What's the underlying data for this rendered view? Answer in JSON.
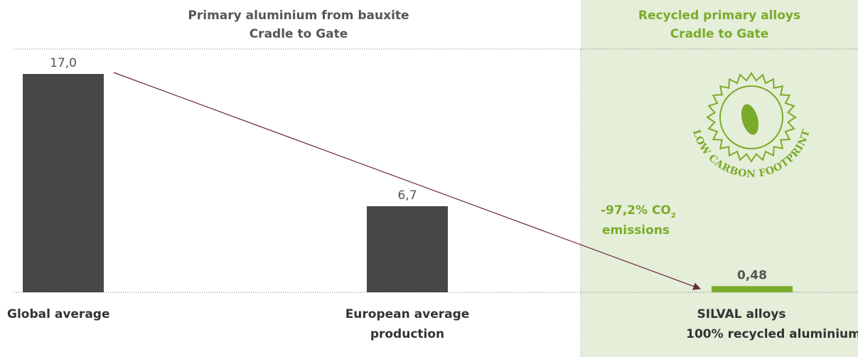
{
  "chart_data": {
    "type": "bar",
    "group_labels": [
      {
        "lines": [
          "Primary aluminium from bauxite",
          "Cradle to Gate"
        ]
      },
      {
        "lines": [
          "Recycled primary alloys",
          "Cradle to Gate"
        ]
      }
    ],
    "categories": [
      [
        "Global average"
      ],
      [
        "European average",
        "production"
      ],
      [
        "SILVAL alloys",
        "100% recycled aluminium"
      ]
    ],
    "values": [
      17.0,
      6.7,
      0.48
    ],
    "value_labels": [
      "17,0",
      "6,7",
      "0,48"
    ],
    "colors": [
      "#474747",
      "#474747",
      "#7aab2a"
    ],
    "ylim": [
      0,
      17
    ],
    "annotation": {
      "text": "-97,2% CO",
      "subscript": "2",
      "line2": "emissions"
    },
    "logo_text": "LOW CARBON FOOTPRINT"
  }
}
